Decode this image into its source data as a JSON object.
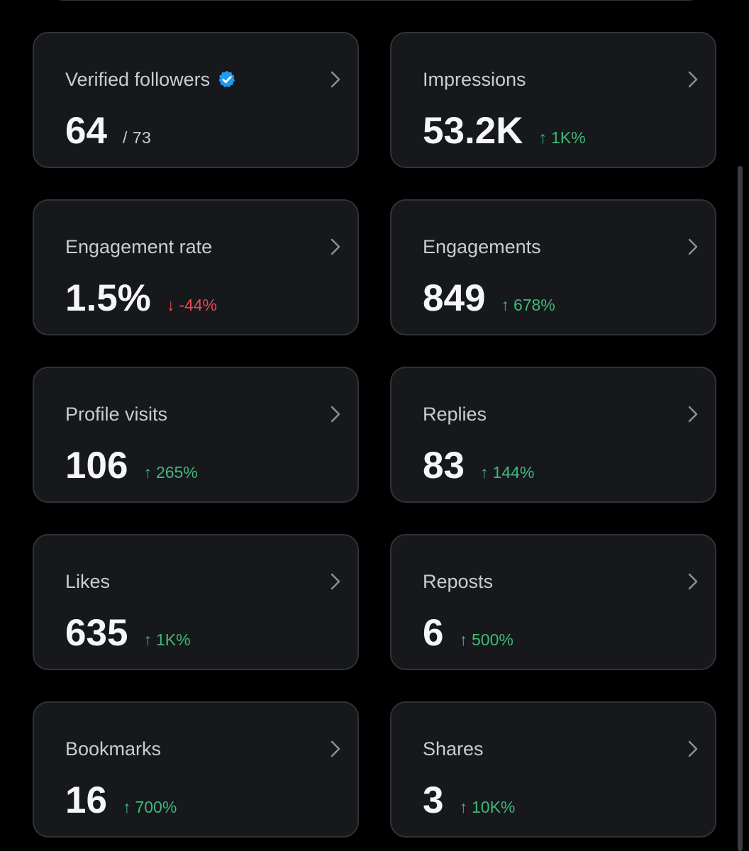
{
  "colors": {
    "background": "#000000",
    "card_background": "#16181c",
    "card_border": "#2f3336",
    "positive": "#3fb97a",
    "negative": "#e8484f",
    "verified": "#1d9bf0"
  },
  "cards": [
    {
      "title": "Verified followers",
      "value": "64",
      "sub": "/ 73",
      "icon": "verified-badge-icon"
    },
    {
      "title": "Impressions",
      "value": "53.2K",
      "change": {
        "direction": "up",
        "arrow": "↑",
        "text": "1K%"
      }
    },
    {
      "title": "Engagement rate",
      "value": "1.5%",
      "change": {
        "direction": "down",
        "arrow": "↓",
        "text": "-44%"
      }
    },
    {
      "title": "Engagements",
      "value": "849",
      "change": {
        "direction": "up",
        "arrow": "↑",
        "text": "678%"
      }
    },
    {
      "title": "Profile visits",
      "value": "106",
      "change": {
        "direction": "up",
        "arrow": "↑",
        "text": "265%"
      }
    },
    {
      "title": "Replies",
      "value": "83",
      "change": {
        "direction": "up",
        "arrow": "↑",
        "text": "144%"
      }
    },
    {
      "title": "Likes",
      "value": "635",
      "change": {
        "direction": "up",
        "arrow": "↑",
        "text": "1K%"
      }
    },
    {
      "title": "Reposts",
      "value": "6",
      "change": {
        "direction": "up",
        "arrow": "↑",
        "text": "500%"
      }
    },
    {
      "title": "Bookmarks",
      "value": "16",
      "change": {
        "direction": "up",
        "arrow": "↑",
        "text": "700%"
      }
    },
    {
      "title": "Shares",
      "value": "3",
      "change": {
        "direction": "up",
        "arrow": "↑",
        "text": "10K%"
      }
    }
  ]
}
